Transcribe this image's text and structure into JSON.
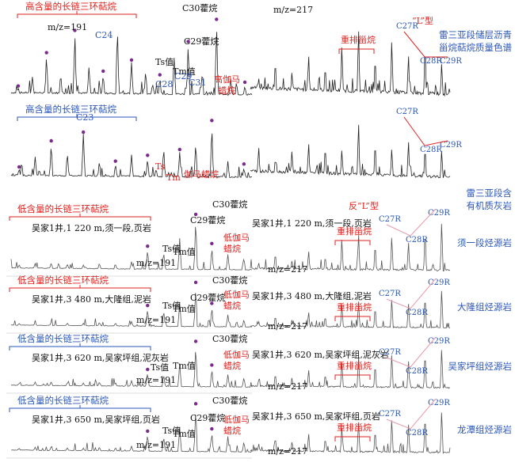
{
  "colors": {
    "red": "#e0221e",
    "blue": "#2b56b8",
    "purple": "#7a2a8c",
    "trace": "#222222",
    "trace_light": "#555555",
    "pink": "#e89aa8"
  },
  "rows": [
    {
      "left": {
        "bracket_text": "高含量的长链三环萜烷",
        "bracket_color": "red",
        "sample": "",
        "mz": "m/z=191",
        "peak_labels": [
          {
            "text": "C24",
            "color": "blue"
          },
          {
            "text": "C30藿烷",
            "color": "black"
          },
          {
            "text": "C29藿烷",
            "color": "black"
          },
          {
            "text": "Ts值",
            "color": "black"
          },
          {
            "text": "Tm值",
            "color": "black"
          },
          {
            "text": "C28",
            "color": "blue"
          },
          {
            "text": "C29",
            "color": "blue"
          },
          {
            "text": "C31",
            "color": "blue"
          },
          {
            "text": "高伽马",
            "color": "red"
          },
          {
            "text": "蜡烷",
            "color": "red"
          }
        ]
      },
      "right": {
        "mz": "m/z=217",
        "type_label": "“L”型",
        "rearr_label": "重排甾烷",
        "sterane_labels": [
          "C27R",
          "C28R",
          "C29R"
        ],
        "description": [
          "雷三亚段储层沥青",
          "甾烷萜烷质量色谱"
        ]
      }
    },
    {
      "left": {
        "bracket_text": "高含量的长链三环萜烷",
        "bracket_color": "blue",
        "sample": "",
        "mz": "",
        "peak_labels": [
          {
            "text": "C23",
            "color": "blue"
          },
          {
            "text": "Ts",
            "color": "red"
          },
          {
            "text": "Tm",
            "color": "red"
          },
          {
            "text": "伽马蜡烷",
            "color": "red"
          }
        ]
      },
      "right": {
        "mz": "",
        "type_label": "",
        "rearr_label": "",
        "sterane_labels": [
          "C27R",
          "C28R",
          "C29R"
        ],
        "description": [
          "雷三亚段含",
          "有机质灰岩"
        ]
      }
    },
    {
      "left": {
        "bracket_text": "低含量的长链三环萜烷",
        "bracket_color": "red",
        "sample": "吴家1井,1 220 m,须一段,页岩",
        "mz": "m/z=191",
        "peak_labels": [
          {
            "text": "C30藿烷",
            "color": "black"
          },
          {
            "text": "C29藿烷",
            "color": "black"
          },
          {
            "text": "Ts值",
            "color": "black"
          },
          {
            "text": "Tm值",
            "color": "black"
          },
          {
            "text": "低伽马",
            "color": "red"
          },
          {
            "text": "蜡烷",
            "color": "red"
          }
        ]
      },
      "right": {
        "mz": "m/z=217",
        "type_label": "反“L”型",
        "rearr_label": "重排甾烷",
        "sample": "吴家1井,1 220 m,须一段,页岩",
        "sterane_labels": [
          "C27R",
          "C28R",
          "C29R"
        ],
        "description": [
          "须一段烃源岩"
        ]
      }
    },
    {
      "left": {
        "bracket_text": "低含量的长链三环萜烷",
        "bracket_color": "red",
        "sample": "吴家1井,3 480 m,大隆组,泥岩",
        "mz": "m/z=191",
        "peak_labels": [
          {
            "text": "C30藿烷",
            "color": "black"
          },
          {
            "text": "C29藿烷",
            "color": "black"
          },
          {
            "text": "Ts值",
            "color": "black"
          },
          {
            "text": "Tm值",
            "color": "black"
          },
          {
            "text": "低伽马",
            "color": "red"
          },
          {
            "text": "蜡烷",
            "color": "red"
          }
        ]
      },
      "right": {
        "mz": "m/z=217",
        "type_label": "",
        "rearr_label": "重排甾烷",
        "sample": "吴家1井,3 480 m,大隆组,泥岩",
        "sterane_labels": [
          "C27R",
          "C28R",
          "C29R"
        ],
        "description": [
          "大隆组烃源岩"
        ]
      }
    },
    {
      "left": {
        "bracket_text": "低含量的长链三环萜烷",
        "bracket_color": "blue",
        "sample": "吴家1井,3 620 m,吴家坪组,泥灰岩",
        "mz": "m/z=191",
        "peak_labels": [
          {
            "text": "C30藿烷",
            "color": "black"
          },
          {
            "text": "Ts值",
            "color": "black"
          },
          {
            "text": "Tm值",
            "color": "black"
          },
          {
            "text": "低伽马",
            "color": "red"
          },
          {
            "text": "蜡烷",
            "color": "red"
          }
        ]
      },
      "right": {
        "mz": "m/z=217",
        "type_label": "",
        "rearr_label": "重排甾烷",
        "sample": "吴家1井,3 620 m,吴家坪组,泥灰岩",
        "sterane_labels": [
          "C27R",
          "C28R",
          "C29R"
        ],
        "description": [
          "吴家坪组烃源岩"
        ]
      }
    },
    {
      "left": {
        "bracket_text": "低含量的长链三环萜烷",
        "bracket_color": "blue",
        "sample": "吴家1井,3 650 m,吴家坪组,页岩",
        "mz": "m/z=191",
        "peak_labels": [
          {
            "text": "C30藿烷",
            "color": "black"
          },
          {
            "text": "C29藿烷",
            "color": "black"
          },
          {
            "text": "Ts值",
            "color": "black"
          },
          {
            "text": "Tm值",
            "color": "black"
          },
          {
            "text": "低伽马",
            "color": "red"
          },
          {
            "text": "蜡烷",
            "color": "red"
          }
        ]
      },
      "right": {
        "mz": "m/z=217",
        "type_label": "",
        "rearr_label": "重排甾烷",
        "sample": "吴家1井,3 650 m,吴家坪组,页岩",
        "sterane_labels": [
          "C27R",
          "C28R",
          "C29R"
        ],
        "description": [
          "龙潭组烃源岩"
        ]
      }
    }
  ],
  "chart_data": {
    "type": "line",
    "description_note": "",
    "series": [
      {
        "name": "雷三亚段储层沥青 m/z=191",
        "peaks": [
          0.1,
          0.25,
          0.55,
          0.3,
          0.85,
          0.4,
          0.3,
          0.95,
          0.45,
          0.35,
          0.25,
          0.55,
          0.7,
          0.35,
          1.0,
          0.25,
          0.15
        ]
      },
      {
        "name": "雷三亚段储层沥青 m/z=217",
        "peaks": [
          0.2,
          0.45,
          0.3,
          0.55,
          0.4,
          0.7,
          0.95,
          0.55,
          0.8,
          0.6,
          0.75,
          0.5
        ]
      },
      {
        "name": "雷三亚段含有机质灰岩 m/z=191",
        "peaks": [
          0.15,
          0.35,
          0.6,
          0.45,
          0.75,
          0.3,
          0.25,
          0.4,
          0.35,
          0.55,
          0.45,
          0.65,
          0.95,
          0.3,
          0.2
        ]
      },
      {
        "name": "雷三亚段含有机质灰岩 m/z=217",
        "peaks": [
          0.5,
          0.3,
          0.45,
          0.6,
          0.55,
          0.5,
          1.0,
          0.65,
          0.55,
          0.7,
          0.6,
          0.55
        ]
      },
      {
        "name": "须一段烃源岩 m/z=191",
        "peaks": [
          0.08,
          0.1,
          0.12,
          0.1,
          0.08,
          0.12,
          0.1,
          0.15,
          0.4,
          0.35,
          0.6,
          1.0,
          0.45,
          0.3,
          0.25
        ]
      },
      {
        "name": "须一段烃源岩 m/z=217",
        "peaks": [
          0.15,
          0.35,
          0.2,
          0.4,
          0.3,
          0.65,
          0.75,
          0.55,
          0.7,
          0.6,
          0.85,
          1.0
        ]
      },
      {
        "name": "大隆组烃源岩 m/z=191",
        "peaks": [
          0.06,
          0.08,
          0.1,
          0.08,
          0.07,
          0.1,
          0.09,
          0.12,
          0.45,
          0.4,
          0.6,
          1.0,
          0.5,
          0.3,
          0.2
        ]
      },
      {
        "name": "大隆组烃源岩 m/z=217",
        "peaks": [
          0.15,
          0.3,
          0.2,
          0.4,
          0.3,
          0.6,
          0.7,
          0.55,
          0.75,
          0.65,
          0.85,
          1.0
        ]
      },
      {
        "name": "吴家坪组烃源岩 m/z=191",
        "peaks": [
          0.07,
          0.09,
          0.11,
          0.09,
          0.08,
          0.11,
          0.1,
          0.14,
          0.35,
          0.3,
          0.55,
          1.0,
          0.45,
          0.3,
          0.25
        ]
      },
      {
        "name": "吴家坪组烃源岩 m/z=217",
        "peaks": [
          0.2,
          0.35,
          0.25,
          0.45,
          0.35,
          0.65,
          0.8,
          0.6,
          0.85,
          0.7,
          0.9,
          1.0
        ]
      },
      {
        "name": "龙潭组烃源岩 m/z=191",
        "peaks": [
          0.06,
          0.08,
          0.1,
          0.08,
          0.07,
          0.1,
          0.09,
          0.12,
          0.4,
          0.35,
          0.55,
          1.0,
          0.45,
          0.35,
          0.25
        ]
      },
      {
        "name": "龙潭组烃源岩 m/z=217",
        "peaks": [
          0.2,
          0.35,
          0.25,
          0.45,
          0.35,
          0.6,
          0.75,
          0.55,
          0.8,
          0.7,
          0.9,
          1.0
        ]
      }
    ]
  }
}
